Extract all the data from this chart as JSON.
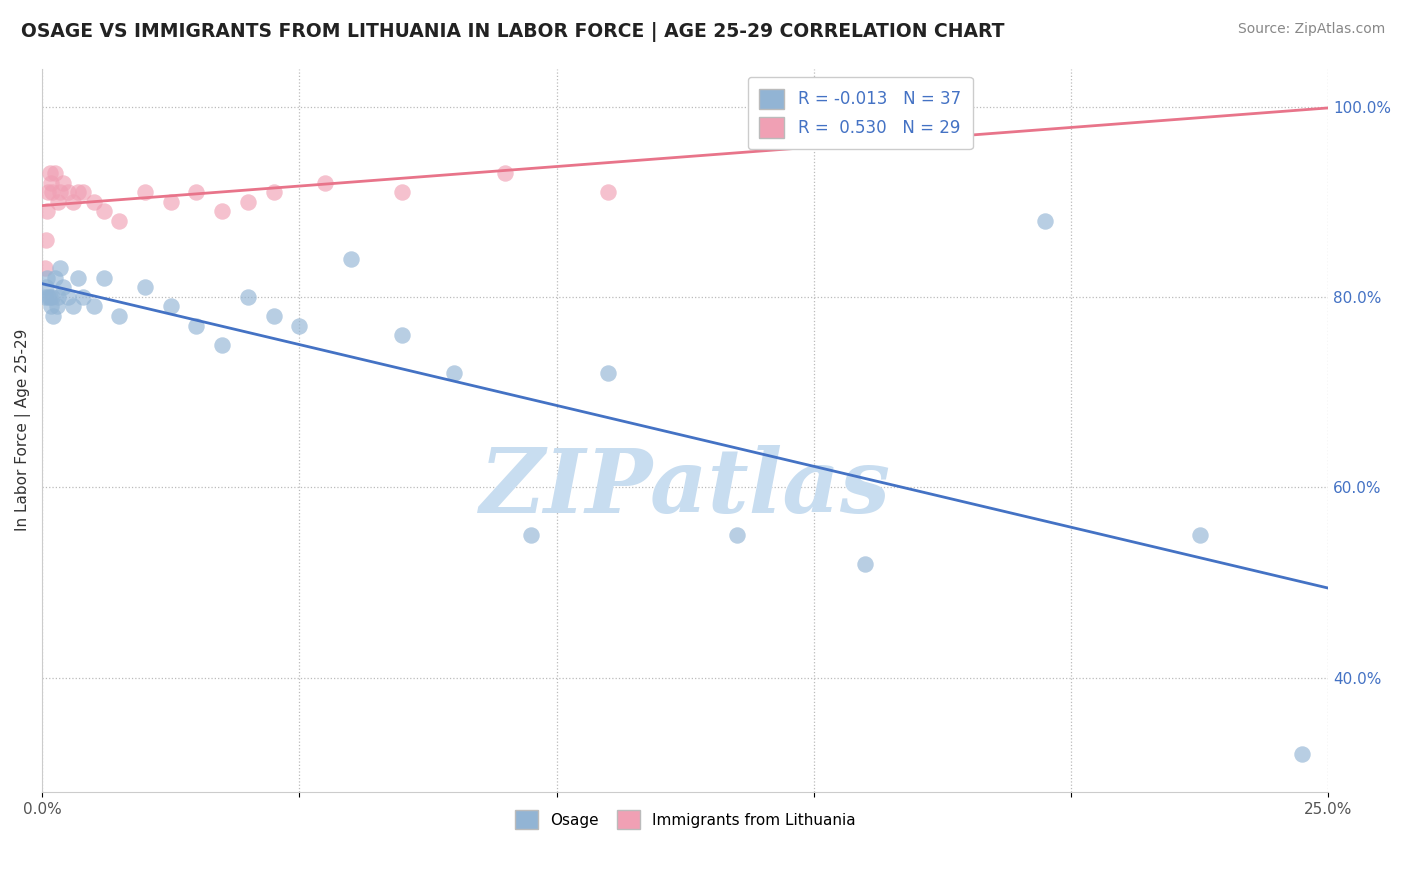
{
  "title": "OSAGE VS IMMIGRANTS FROM LITHUANIA IN LABOR FORCE | AGE 25-29 CORRELATION CHART",
  "source_text": "Source: ZipAtlas.com",
  "ylabel": "In Labor Force | Age 25-29",
  "xlim": [
    0.0,
    25.0
  ],
  "ylim": [
    28.0,
    104.0
  ],
  "x_ticks": [
    0.0,
    5.0,
    10.0,
    15.0,
    20.0,
    25.0
  ],
  "y_ticks_right": [
    40.0,
    60.0,
    80.0,
    100.0
  ],
  "y_tick_labels_right": [
    "40.0%",
    "60.0%",
    "80.0%",
    "100.0%"
  ],
  "R_osage": -0.013,
  "N_osage": 37,
  "R_lith": 0.53,
  "N_lith": 29,
  "blue_color": "#4472c4",
  "pink_color": "#e8748a",
  "dot_blue": "#92b4d4",
  "dot_pink": "#f0a0b4",
  "watermark": "ZIPatlas",
  "watermark_color": "#c8ddf0",
  "osage_x": [
    0.05,
    0.08,
    0.1,
    0.12,
    0.15,
    0.18,
    0.2,
    0.22,
    0.25,
    0.28,
    0.3,
    0.35,
    0.4,
    0.5,
    0.6,
    0.7,
    0.8,
    1.0,
    1.2,
    1.5,
    2.0,
    2.5,
    3.0,
    3.5,
    4.0,
    4.5,
    5.0,
    6.0,
    7.0,
    8.0,
    9.5,
    11.0,
    13.5,
    16.0,
    19.5,
    22.5,
    24.5
  ],
  "osage_y": [
    80.0,
    81.0,
    82.0,
    80.0,
    80.0,
    79.0,
    80.0,
    78.0,
    82.0,
    79.0,
    80.0,
    83.0,
    81.0,
    80.0,
    79.0,
    82.0,
    80.0,
    79.0,
    82.0,
    78.0,
    81.0,
    79.0,
    77.0,
    75.0,
    80.0,
    78.0,
    77.0,
    84.0,
    76.0,
    72.0,
    55.0,
    72.0,
    55.0,
    52.0,
    88.0,
    55.0,
    32.0
  ],
  "lith_x": [
    0.05,
    0.08,
    0.1,
    0.12,
    0.15,
    0.18,
    0.2,
    0.25,
    0.3,
    0.35,
    0.4,
    0.5,
    0.6,
    0.7,
    0.8,
    1.0,
    1.2,
    1.5,
    2.0,
    2.5,
    3.0,
    3.5,
    4.0,
    4.5,
    5.5,
    7.0,
    9.0,
    11.0,
    16.5
  ],
  "lith_y": [
    83.0,
    86.0,
    89.0,
    91.0,
    93.0,
    92.0,
    91.0,
    93.0,
    90.0,
    91.0,
    92.0,
    91.0,
    90.0,
    91.0,
    91.0,
    90.0,
    89.0,
    88.0,
    91.0,
    90.0,
    91.0,
    89.0,
    90.0,
    91.0,
    92.0,
    91.0,
    93.0,
    91.0,
    100.0
  ]
}
